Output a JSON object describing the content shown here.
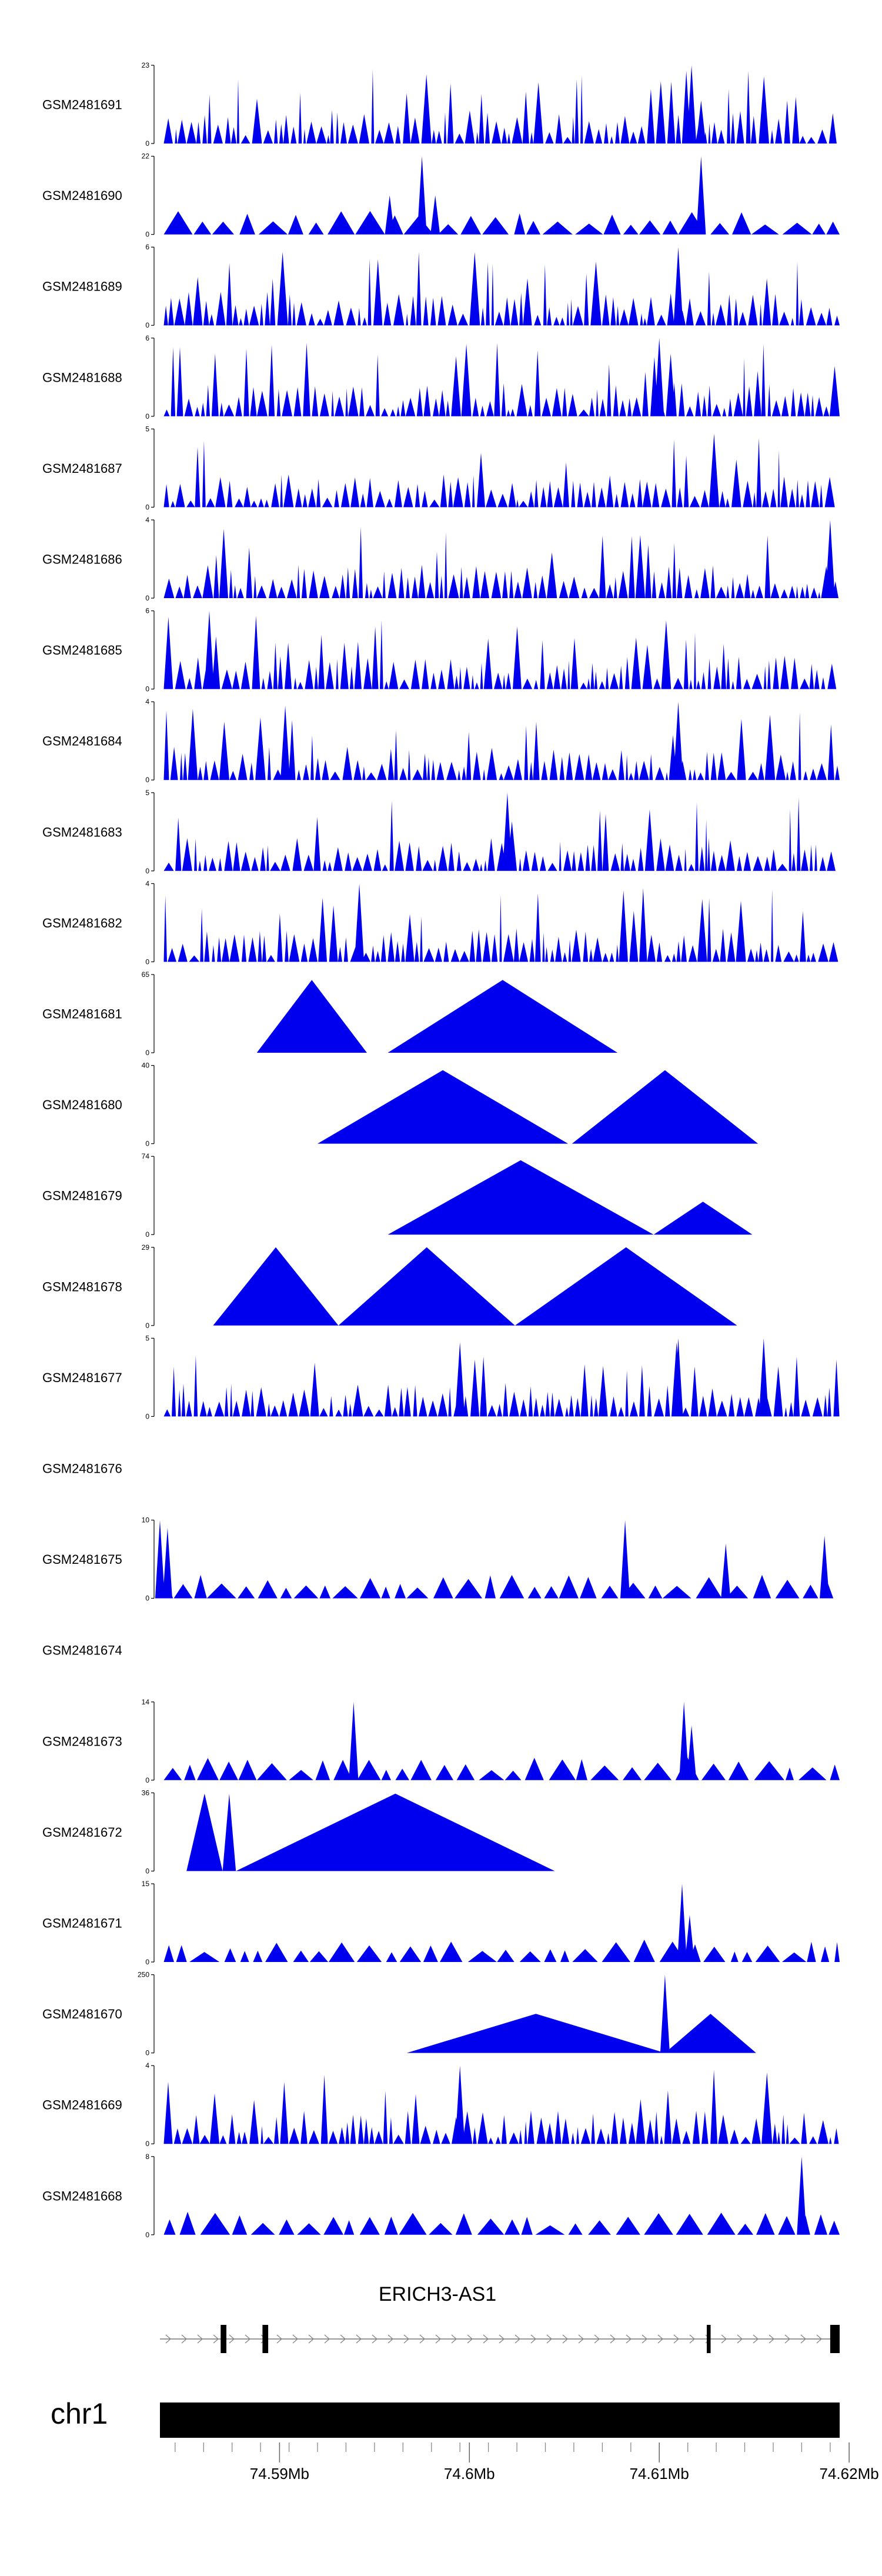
{
  "chart_data": {
    "type": "area",
    "title": "",
    "xlabel": "",
    "ylabel": "",
    "fill_color": "#0000ee",
    "x_range": [
      74.5837,
      74.6195
    ],
    "x_ticks": [
      "74.59Mb",
      "74.6Mb",
      "74.61Mb",
      "74.62Mb"
    ],
    "x_tick_values": [
      74.59,
      74.6,
      74.61,
      74.62
    ],
    "chromosome": "chr1",
    "gene": {
      "name": "ERICH3-AS1",
      "strand": "+",
      "exons": [
        [
          74.5869,
          74.5872
        ],
        [
          74.5891,
          74.5894
        ],
        [
          74.6125,
          74.6127
        ],
        [
          74.619,
          74.6195
        ]
      ]
    },
    "tracks": [
      {
        "name": "GSM2481691",
        "ymax": 23,
        "kind": "dense",
        "spikes": [
          [
            74.6117,
            1.0
          ],
          [
            74.6122,
            0.55
          ]
        ]
      },
      {
        "name": "GSM2481690",
        "ymax": 22,
        "kind": "sparse",
        "spikes": [
          [
            74.5958,
            0.5
          ],
          [
            74.5975,
            1.0
          ],
          [
            74.5982,
            0.5
          ],
          [
            74.6122,
            1.0
          ]
        ]
      },
      {
        "name": "GSM2481689",
        "ymax": 6,
        "kind": "dense",
        "spikes": [
          [
            74.611,
            1.0
          ]
        ]
      },
      {
        "name": "GSM2481688",
        "ymax": 6,
        "kind": "dense",
        "spikes": [
          [
            74.61,
            1.0
          ],
          [
            74.6106,
            0.8
          ]
        ]
      },
      {
        "name": "GSM2481687",
        "ymax": 5,
        "kind": "dense",
        "spikes": []
      },
      {
        "name": "GSM2481686",
        "ymax": 4,
        "kind": "dense",
        "spikes": [
          [
            74.619,
            1.0
          ]
        ]
      },
      {
        "name": "GSM2481685",
        "ymax": 6,
        "kind": "dense",
        "spikes": [
          [
            74.5863,
            1.0
          ]
        ]
      },
      {
        "name": "GSM2481684",
        "ymax": 4,
        "kind": "dense",
        "spikes": [
          [
            74.5903,
            0.95
          ],
          [
            74.611,
            1.0
          ]
        ]
      },
      {
        "name": "GSM2481683",
        "ymax": 5,
        "kind": "dense",
        "spikes": [
          [
            74.602,
            1.0
          ]
        ]
      },
      {
        "name": "GSM2481682",
        "ymax": 4,
        "kind": "dense",
        "spikes": [
          [
            74.5942,
            1.0
          ]
        ]
      },
      {
        "name": "GSM2481681",
        "ymax": 65,
        "kind": "peaks",
        "peaks": [
          [
            74.5888,
            74.5946,
            0.93
          ],
          [
            74.5957,
            74.6078,
            0.93
          ]
        ]
      },
      {
        "name": "GSM2481680",
        "ymax": 40,
        "kind": "peaks",
        "peaks": [
          [
            74.592,
            74.6052,
            0.94
          ],
          [
            74.6054,
            74.6152,
            0.94
          ]
        ]
      },
      {
        "name": "GSM2481679",
        "ymax": 74,
        "kind": "peaks",
        "peaks": [
          [
            74.5957,
            74.6097,
            0.95
          ],
          [
            74.6097,
            74.6149,
            0.42
          ]
        ]
      },
      {
        "name": "GSM2481678",
        "ymax": 29,
        "kind": "peaks",
        "peaks": [
          [
            74.5865,
            74.5931,
            1.0
          ],
          [
            74.5931,
            74.6024,
            1.0
          ],
          [
            74.6024,
            74.6141,
            1.0
          ]
        ]
      },
      {
        "name": "GSM2481677",
        "ymax": 5,
        "kind": "dense",
        "spikes": [
          [
            74.5995,
            0.95
          ],
          [
            74.611,
            1.0
          ],
          [
            74.6155,
            1.0
          ]
        ]
      },
      {
        "name": "GSM2481676",
        "ymax": null,
        "kind": "empty"
      },
      {
        "name": "GSM2481675",
        "ymax": 10,
        "kind": "sparse",
        "spikes": [
          [
            74.5837,
            1.0
          ],
          [
            74.5841,
            0.9
          ],
          [
            74.6082,
            1.0
          ],
          [
            74.6135,
            0.7
          ],
          [
            74.6187,
            0.8
          ]
        ]
      },
      {
        "name": "GSM2481674",
        "ymax": null,
        "kind": "empty"
      },
      {
        "name": "GSM2481673",
        "ymax": 14,
        "kind": "sparse",
        "spikes": [
          [
            74.5939,
            1.0
          ],
          [
            74.6113,
            1.0
          ],
          [
            74.6117,
            0.7
          ]
        ]
      },
      {
        "name": "GSM2481672",
        "ymax": 36,
        "kind": "peaks",
        "peaks": [
          [
            74.5851,
            74.587,
            0.99
          ],
          [
            74.587,
            74.5877,
            0.99
          ],
          [
            74.5877,
            74.6045,
            0.99
          ]
        ]
      },
      {
        "name": "GSM2481671",
        "ymax": 15,
        "kind": "sparse",
        "spikes": [
          [
            74.6112,
            1.0
          ],
          [
            74.6116,
            0.6
          ]
        ]
      },
      {
        "name": "GSM2481670",
        "ymax": 250,
        "kind": "peaks",
        "peaks": [
          [
            74.5967,
            74.6103,
            0.5
          ],
          [
            74.6103,
            74.6151,
            0.5
          ]
        ],
        "spikes": [
          [
            74.6103,
            1.0
          ]
        ]
      },
      {
        "name": "GSM2481669",
        "ymax": 4,
        "kind": "dense",
        "spikes": [
          [
            74.5995,
            1.0
          ]
        ]
      },
      {
        "name": "GSM2481668",
        "ymax": 8,
        "kind": "sparse",
        "spikes": [
          [
            74.6175,
            1.0
          ]
        ]
      }
    ]
  }
}
